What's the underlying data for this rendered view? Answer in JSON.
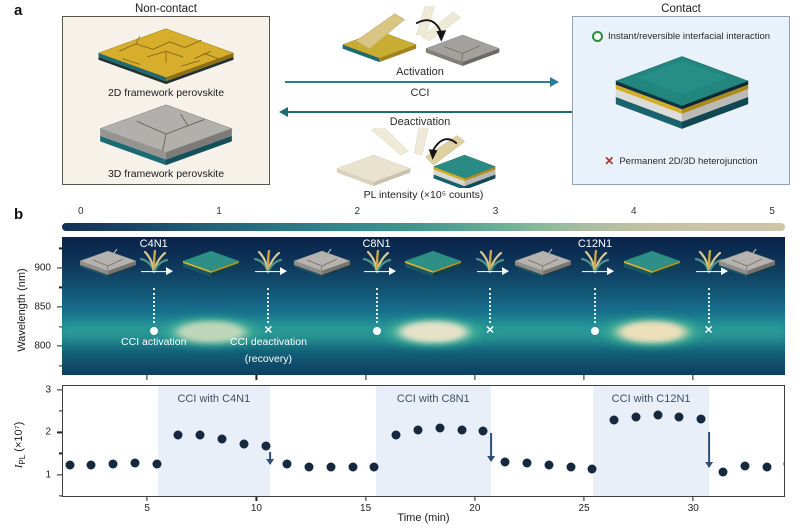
{
  "panel_a": {
    "label": "a",
    "non_contact": {
      "title": "Non-contact",
      "slab_2d": "2D framework perovskite",
      "slab_3d": "3D framework perovskite"
    },
    "cci": {
      "activation": "Activation",
      "center": "CCI",
      "deactivation": "Deactivation"
    },
    "contact": {
      "title": "Contact",
      "reversible": "Instant/reversible interfacial interaction",
      "permanent": "Permanent 2D/3D heterojunction"
    }
  },
  "panel_b": {
    "label": "b"
  },
  "icons": {
    "check_circle": "green-ring",
    "x_mark": "✕"
  },
  "colors": {
    "activation_arrow": "#2a7d9b",
    "deactivation_arrow": "#1d6b74",
    "check_green": "#2e8b3c",
    "cross_red": "#b53030",
    "scatter_dot": "#15283d",
    "region_shade": "#e8eff9"
  },
  "chart_data": [
    {
      "type": "heatmap",
      "colorbar_title": "PL intensity (×10⁵ counts)",
      "colorbar_ticks": [
        0,
        1,
        2,
        3,
        4,
        5
      ],
      "ylabel": "Wavelength (nm)",
      "yticks": [
        900,
        850,
        800
      ],
      "yticks_minor": [
        925,
        875,
        825,
        775
      ],
      "y_range_nm": [
        763,
        939.5
      ],
      "x_range_min": [
        1.1,
        34.2
      ],
      "emission_center_nm": 815,
      "marker_deactivation": "✕",
      "activation_note": "CCI activation",
      "deactivation_note": "CCI deactivation",
      "deactivation_note2": "(recovery)",
      "events": [
        {
          "label": "C4N1",
          "activation_min": 5.3,
          "deactivation_min": 10.55,
          "blob_color": "#d9e3bf",
          "blob_alpha": 0.85
        },
        {
          "label": "C8N1",
          "activation_min": 15.5,
          "deactivation_min": 20.7,
          "blob_color": "#f0e7cc",
          "blob_alpha": 0.95
        },
        {
          "label": "C12N1",
          "activation_min": 25.5,
          "deactivation_min": 30.7,
          "blob_color": "#ecdfba",
          "blob_alpha": 1
        }
      ]
    },
    {
      "type": "scatter",
      "xlabel": "Time (min)",
      "ylabel_parts": {
        "symbol": "I",
        "sub": "PL",
        "unit": " (×10⁷)"
      },
      "xticks": [
        5,
        10,
        15,
        20,
        25,
        30
      ],
      "yticks": [
        3,
        2,
        1
      ],
      "yticks_minor": [
        2.5,
        1.5,
        0.5
      ],
      "xlim": [
        1.1,
        34.2
      ],
      "ylim": [
        0.47,
        3.12
      ],
      "x": [
        1.4,
        2.4,
        3.4,
        4.4,
        5.4,
        6.4,
        7.4,
        8.4,
        9.4,
        10.4,
        11.4,
        12.4,
        13.4,
        14.4,
        15.4,
        16.4,
        17.4,
        18.4,
        19.4,
        20.4,
        21.4,
        22.4,
        23.4,
        24.4,
        25.4,
        26.4,
        27.4,
        28.4,
        29.4,
        30.4,
        31.4,
        32.4,
        33.4,
        34.4
      ],
      "y": [
        1.22,
        1.22,
        1.25,
        1.26,
        1.24,
        1.93,
        1.93,
        1.85,
        1.72,
        1.68,
        1.25,
        1.18,
        1.16,
        1.18,
        1.17,
        1.95,
        2.07,
        2.12,
        2.07,
        2.04,
        1.3,
        1.27,
        1.21,
        1.16,
        1.12,
        2.29,
        2.38,
        2.43,
        2.38,
        2.33,
        1.06,
        1.2,
        1.17,
        1.24
      ],
      "regions": [
        {
          "label": "CCI with C4N1",
          "start_min": 5.45,
          "end_min": 10.6
        },
        {
          "label": "CCI with C8N1",
          "start_min": 15.45,
          "end_min": 20.75
        },
        {
          "label": "CCI with C12N1",
          "start_min": 25.45,
          "end_min": 30.75
        }
      ],
      "arrows": [
        {
          "x_min": 10.6,
          "y_from": 1.55,
          "y_to": 1.25
        },
        {
          "x_min": 20.75,
          "y_from": 2.0,
          "y_to": 1.33
        },
        {
          "x_min": 30.75,
          "y_from": 2.02,
          "y_to": 1.18
        }
      ]
    }
  ]
}
